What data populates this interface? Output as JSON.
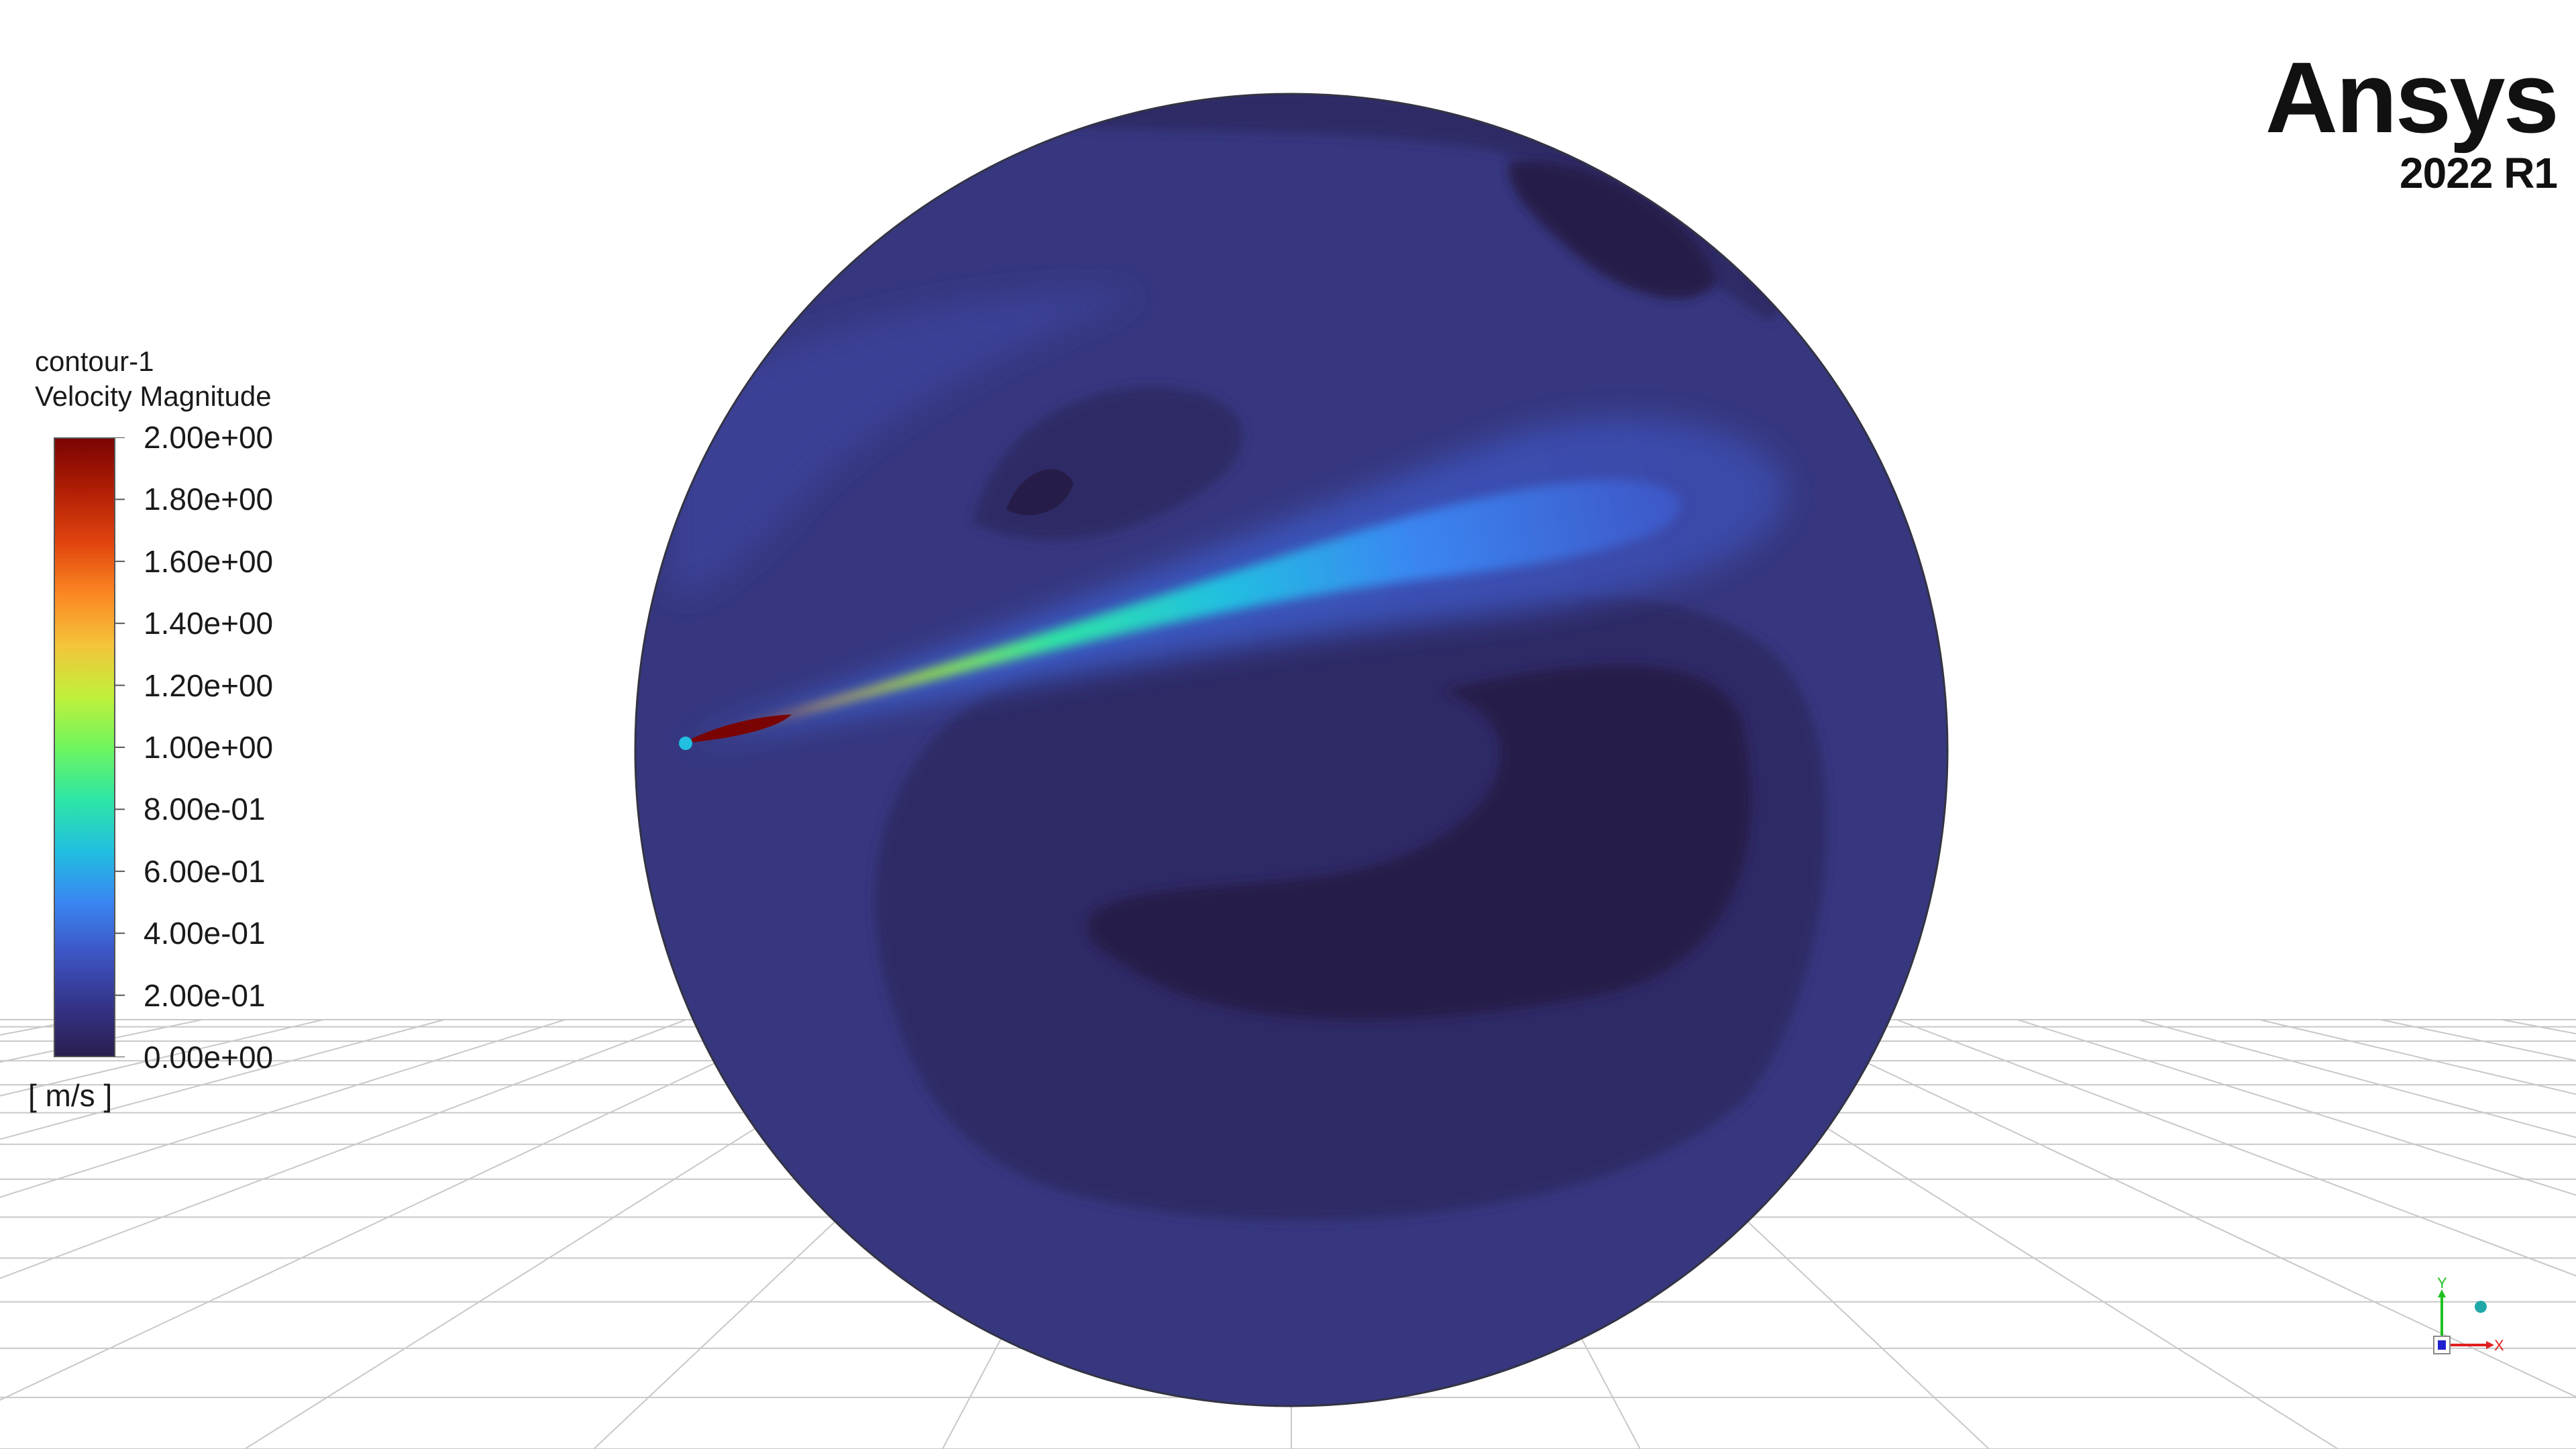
{
  "legend": {
    "title": "contour-1",
    "variable": "Velocity Magnitude",
    "unit": "[ m/s ]",
    "min": 0,
    "max": 2,
    "ticks": [
      "2.00e+00",
      "1.80e+00",
      "1.60e+00",
      "1.40e+00",
      "1.20e+00",
      "1.00e+00",
      "8.00e-01",
      "6.00e-01",
      "4.00e-01",
      "2.00e-01",
      "0.00e+00"
    ],
    "colormap": [
      "#2b1e50",
      "#34348a",
      "#3d55c4",
      "#3a86f2",
      "#21c0e0",
      "#2ee6a4",
      "#6ff55e",
      "#c2f03a",
      "#f5c33a",
      "#fb8622",
      "#e0430e",
      "#b01e05",
      "#7a0403"
    ]
  },
  "brand": {
    "name": "Ansys",
    "version": "2022 R1"
  },
  "triad": {
    "x_label": "X",
    "y_label": "Y",
    "x_color": "#e02020",
    "y_color": "#20c020",
    "z_color": "#2020d0"
  },
  "colors": {
    "background": "#ffffff",
    "grid_line": "#c8c8c8",
    "domain_base": "#36377f",
    "domain_mid": "#2f2a66",
    "domain_low": "#271c48",
    "edge": "#333344"
  }
}
